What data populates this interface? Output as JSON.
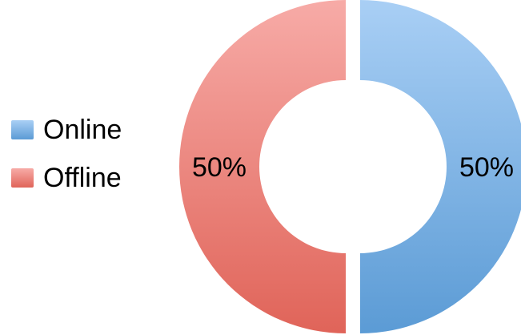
{
  "chart_data": {
    "type": "pie",
    "variant": "donut",
    "title": "",
    "categories": [
      "Online",
      "Offline"
    ],
    "values": [
      50,
      50
    ],
    "labels": [
      "50%",
      "50%"
    ],
    "colors": [
      "#5b9bd5",
      "#e06459"
    ],
    "legend": "left",
    "grid": false
  }
}
